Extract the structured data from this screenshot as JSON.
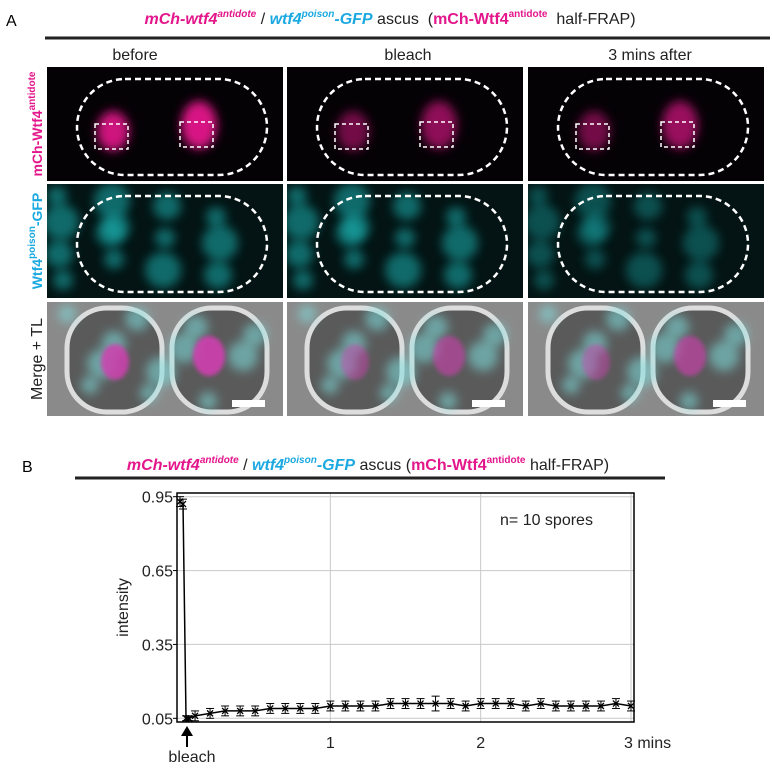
{
  "panel_a": {
    "label": "A",
    "title": [
      "mCh-wtf4",
      "antidote",
      " / ",
      "wtf4",
      "poison",
      "-GFP",
      " ascus  (",
      "mCh-Wtf4",
      "antidote",
      "  half-FRAP)"
    ],
    "columns": [
      "before",
      "bleach",
      "3 mins after"
    ],
    "rows": [
      [
        "mCh-Wtf4",
        "antidote"
      ],
      [
        "Wtf4",
        "poison",
        "-GFP"
      ],
      [
        "Merge + TL"
      ]
    ]
  },
  "panel_b_label": "B",
  "chart_data": {
    "type": "line",
    "title": [
      "mCh-wtf4",
      "antidote",
      " / ",
      "wtf4",
      "poison",
      "-GFP",
      " ascus (",
      "mCh-Wtf4",
      "antidote",
      " half-FRAP)"
    ],
    "ylabel": "intensity",
    "annotation": "n= 10 spores",
    "bleach_label": "bleach",
    "color": "#000000",
    "x": [
      0,
      0.02,
      0.04,
      0.06,
      0.1,
      0.2,
      0.3,
      0.4,
      0.5,
      0.6,
      0.7,
      0.8,
      0.9,
      1.0,
      1.1,
      1.2,
      1.3,
      1.4,
      1.5,
      1.6,
      1.7,
      1.8,
      1.9,
      2.0,
      2.1,
      2.2,
      2.3,
      2.4,
      2.5,
      2.6,
      2.7,
      2.8,
      2.9,
      3.0
    ],
    "values": [
      0.93,
      0.92,
      0.05,
      0.05,
      0.06,
      0.07,
      0.08,
      0.08,
      0.08,
      0.09,
      0.09,
      0.09,
      0.09,
      0.1,
      0.1,
      0.1,
      0.1,
      0.11,
      0.11,
      0.11,
      0.11,
      0.11,
      0.1,
      0.11,
      0.11,
      0.11,
      0.1,
      0.11,
      0.1,
      0.1,
      0.1,
      0.1,
      0.11,
      0.1
    ],
    "errors": [
      0.02,
      0.02,
      0.01,
      0.01,
      0.02,
      0.02,
      0.02,
      0.02,
      0.02,
      0.02,
      0.02,
      0.02,
      0.02,
      0.02,
      0.02,
      0.02,
      0.02,
      0.02,
      0.02,
      0.02,
      0.03,
      0.02,
      0.02,
      0.02,
      0.02,
      0.02,
      0.02,
      0.02,
      0.02,
      0.02,
      0.02,
      0.02,
      0.02,
      0.02
    ],
    "xlim": [
      -0.02,
      3.02
    ],
    "xticks": [
      1,
      2,
      {
        "value": 3,
        "label": "3 mins"
      }
    ],
    "ylim": [
      0.035,
      0.965
    ],
    "yticks": [
      0.05,
      0.35,
      0.65,
      0.95
    ],
    "grid": true
  }
}
